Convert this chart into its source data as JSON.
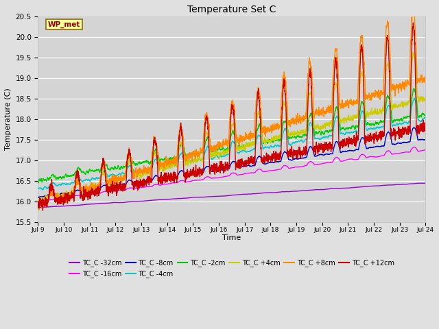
{
  "title": "Temperature Set C",
  "xlabel": "Time",
  "ylabel": "Temperature (C)",
  "ylim": [
    15.5,
    20.5
  ],
  "n_points": 3600,
  "background_color": "#e0e0e0",
  "plot_bg_color": "#d4d4d4",
  "grid_color": "#ffffff",
  "series": [
    {
      "label": "TC_C -32cm",
      "color": "#9900cc",
      "lw": 1.0
    },
    {
      "label": "TC_C -16cm",
      "color": "#ff00ff",
      "lw": 1.0
    },
    {
      "label": "TC_C -8cm",
      "color": "#0000cc",
      "lw": 1.0
    },
    {
      "label": "TC_C -4cm",
      "color": "#00cccc",
      "lw": 1.0
    },
    {
      "label": "TC_C -2cm",
      "color": "#00cc00",
      "lw": 1.0
    },
    {
      "label": "TC_C +4cm",
      "color": "#cccc00",
      "lw": 1.0
    },
    {
      "label": "TC_C +8cm",
      "color": "#ff8800",
      "lw": 1.0
    },
    {
      "label": "TC_C +12cm",
      "color": "#cc0000",
      "lw": 1.0
    }
  ],
  "xtick_labels": [
    "Jul 9",
    "Jul 10",
    "Jul 11",
    "Jul 12",
    "Jul 13",
    "Jul 14",
    "Jul 15",
    "Jul 16",
    "Jul 17",
    "Jul 18",
    "Jul 19",
    "Jul 20",
    "Jul 21",
    "Jul 22",
    "Jul 23",
    "Jul 24"
  ],
  "annotation_text": "WP_met",
  "annotation_color": "#8b0000",
  "annotation_bg": "#ffff99",
  "annotation_border": "#8b6914"
}
